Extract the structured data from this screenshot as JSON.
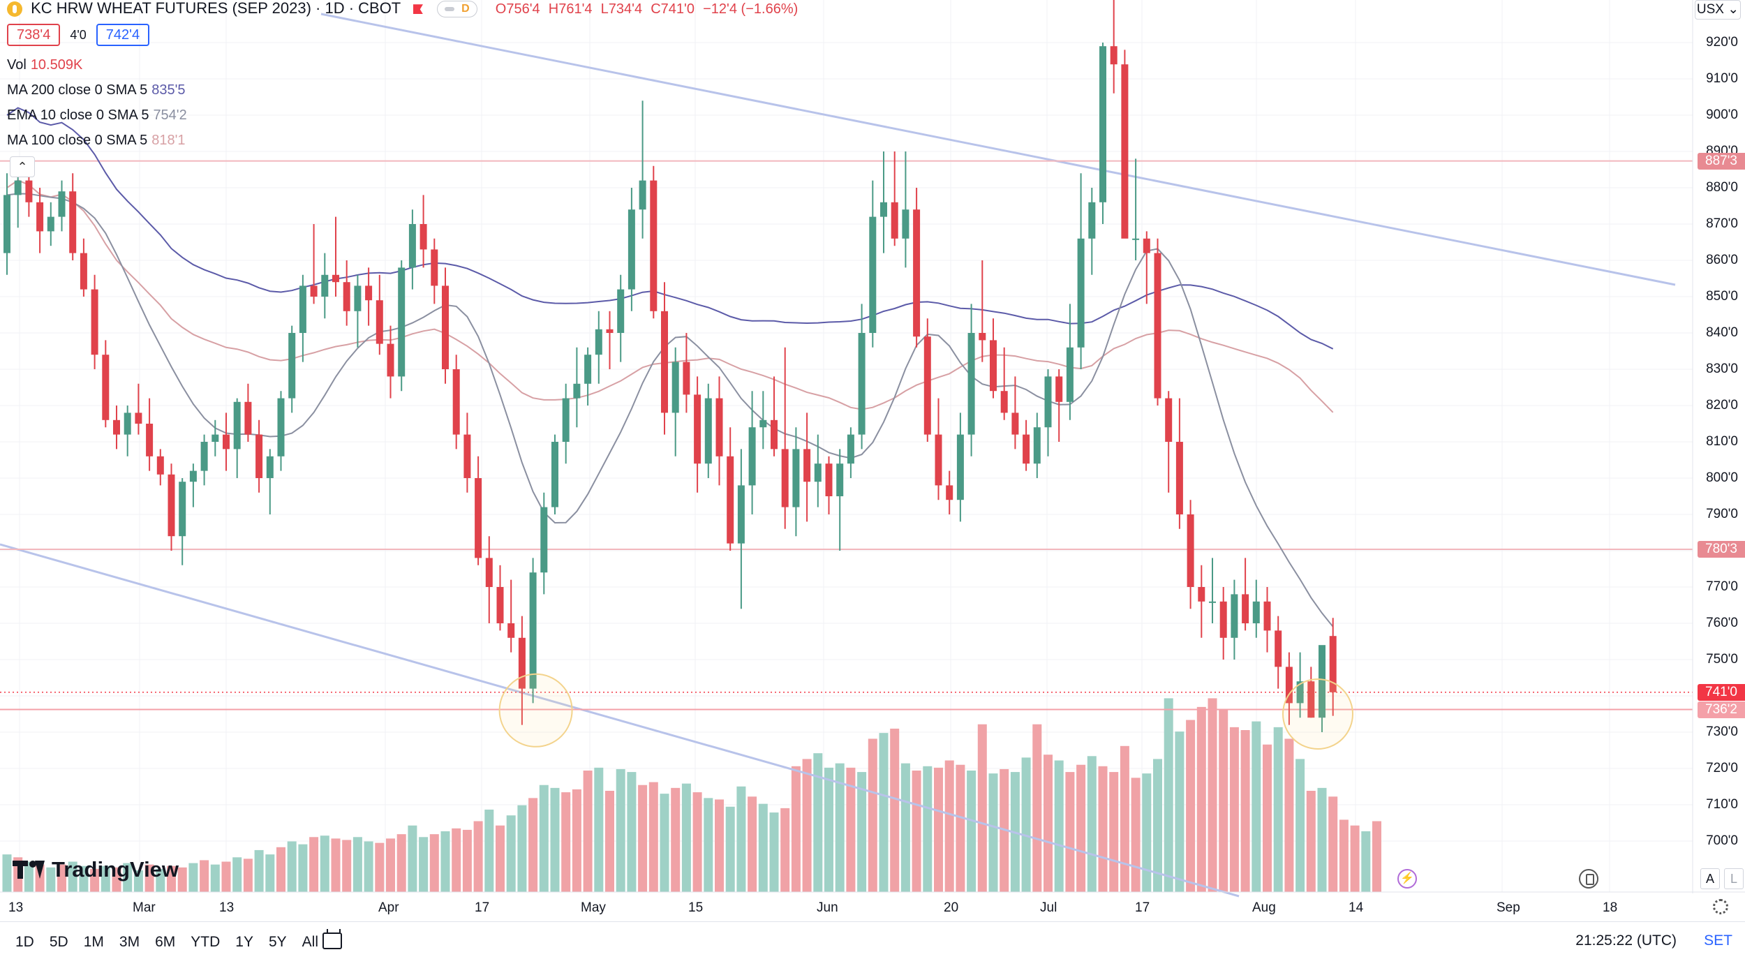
{
  "header": {
    "symbol_title": "KC HRW WHEAT FUTURES (SEP 2023) · 1D · CBOT",
    "status_badge": "D",
    "ohlc": {
      "open": "O756'4",
      "high": "H761'4",
      "low": "L734'4",
      "close": "C741'0",
      "change": "−12'4 (−1.66%)"
    },
    "bid": "738'4",
    "spread": "4'0",
    "ask": "742'4",
    "currency": "USX"
  },
  "indicators": [
    {
      "label": "Vol",
      "value": "10.509K",
      "color": "#e0424b"
    },
    {
      "label": "MA 200 close 0 SMA 5",
      "value": "835'5",
      "color": "#5b5aa8"
    },
    {
      "label": "EMA 10 close 0 SMA 5",
      "value": "754'2",
      "color": "#8a8fa0"
    },
    {
      "label": "MA 100 close 0 SMA 5",
      "value": "818'1",
      "color": "#d7a0a4"
    }
  ],
  "price_axis": {
    "ticks": [
      "920'0",
      "910'0",
      "900'0",
      "890'0",
      "880'0",
      "870'0",
      "860'0",
      "850'0",
      "840'0",
      "830'0",
      "820'0",
      "810'0",
      "800'0",
      "790'0",
      "780'0",
      "770'0",
      "760'0",
      "750'0",
      "740'0",
      "730'0",
      "720'0",
      "710'0",
      "700'0"
    ],
    "tags": [
      {
        "text": "887'3",
        "color": "#e88a92"
      },
      {
        "text": "780'3",
        "color": "#e88a92"
      },
      {
        "text": "741'0",
        "color": "#f23645"
      },
      {
        "text": "736'2",
        "color": "#f4a0a8"
      }
    ]
  },
  "time_axis": [
    "13",
    "Mar",
    "13",
    "Apr",
    "17",
    "May",
    "15",
    "Jun",
    "20",
    "Jul",
    "17",
    "Aug",
    "14",
    "Sep",
    "18"
  ],
  "bottom_bar": {
    "ranges": [
      "1D",
      "5D",
      "1M",
      "3M",
      "6M",
      "YTD",
      "1Y",
      "5Y",
      "All"
    ],
    "clock": "21:25:22 (UTC)",
    "settings": "SET",
    "auto": "A",
    "log": "L"
  },
  "brand": "TradingView",
  "colors": {
    "up": "#4a9a86",
    "down": "#e0424b",
    "up_vol": "#9fd1c6",
    "down_vol": "#f0a2a6",
    "trend": "#b8c3ea",
    "ma200": "#5b5aa8",
    "ema10": "#8a8fa0",
    "ma100": "#d7a0a4"
  },
  "chart_data": {
    "type": "candlestick",
    "ylim": [
      700,
      922
    ],
    "horizontal_levels": [
      887.375,
      780.375,
      741.0,
      736.25
    ],
    "candles": [
      [
        862,
        884,
        856,
        878
      ],
      [
        878,
        886,
        869,
        882
      ],
      [
        882,
        886,
        872,
        876
      ],
      [
        876,
        880,
        862,
        868
      ],
      [
        868,
        876,
        864,
        872
      ],
      [
        872,
        882,
        868,
        879
      ],
      [
        879,
        884,
        860,
        862
      ],
      [
        862,
        866,
        850,
        852
      ],
      [
        852,
        856,
        830,
        834
      ],
      [
        834,
        838,
        814,
        816
      ],
      [
        816,
        820,
        808,
        812
      ],
      [
        812,
        820,
        806,
        818
      ],
      [
        818,
        826,
        812,
        815
      ],
      [
        815,
        822,
        802,
        806
      ],
      [
        806,
        808,
        798,
        801
      ],
      [
        801,
        804,
        780,
        784
      ],
      [
        784,
        800,
        776,
        799
      ],
      [
        799,
        804,
        792,
        802
      ],
      [
        802,
        812,
        798,
        810
      ],
      [
        810,
        816,
        806,
        812
      ],
      [
        812,
        818,
        802,
        808
      ],
      [
        808,
        822,
        800,
        821
      ],
      [
        821,
        826,
        810,
        812
      ],
      [
        812,
        816,
        796,
        800
      ],
      [
        800,
        808,
        790,
        806
      ],
      [
        806,
        824,
        802,
        822
      ],
      [
        822,
        842,
        818,
        840
      ],
      [
        840,
        856,
        832,
        853
      ],
      [
        853,
        870,
        848,
        850
      ],
      [
        850,
        862,
        844,
        856
      ],
      [
        856,
        872,
        850,
        854
      ],
      [
        854,
        860,
        842,
        846
      ],
      [
        846,
        856,
        836,
        853
      ],
      [
        853,
        858,
        842,
        849
      ],
      [
        849,
        856,
        834,
        837
      ],
      [
        837,
        842,
        822,
        828
      ],
      [
        828,
        860,
        824,
        858
      ],
      [
        858,
        874,
        852,
        870
      ],
      [
        870,
        878,
        858,
        863
      ],
      [
        863,
        866,
        848,
        853
      ],
      [
        853,
        858,
        826,
        830
      ],
      [
        830,
        834,
        808,
        812
      ],
      [
        812,
        818,
        796,
        800
      ],
      [
        800,
        806,
        776,
        778
      ],
      [
        778,
        784,
        760,
        770
      ],
      [
        770,
        776,
        758,
        760
      ],
      [
        760,
        772,
        752,
        756
      ],
      [
        756,
        762,
        732,
        742
      ],
      [
        742,
        778,
        738,
        774
      ],
      [
        774,
        796,
        768,
        792
      ],
      [
        792,
        812,
        790,
        810
      ],
      [
        810,
        826,
        804,
        822
      ],
      [
        822,
        836,
        814,
        826
      ],
      [
        826,
        836,
        820,
        834
      ],
      [
        834,
        846,
        826,
        841
      ],
      [
        841,
        846,
        830,
        840
      ],
      [
        840,
        856,
        832,
        852
      ],
      [
        852,
        880,
        846,
        874
      ],
      [
        874,
        904,
        866,
        882
      ],
      [
        882,
        886,
        844,
        846
      ],
      [
        846,
        854,
        812,
        818
      ],
      [
        818,
        836,
        806,
        832
      ],
      [
        832,
        840,
        818,
        823
      ],
      [
        823,
        828,
        796,
        804
      ],
      [
        804,
        826,
        800,
        822
      ],
      [
        822,
        828,
        798,
        806
      ],
      [
        806,
        814,
        780,
        782
      ],
      [
        782,
        808,
        764,
        798
      ],
      [
        798,
        824,
        790,
        814
      ],
      [
        814,
        824,
        808,
        816
      ],
      [
        816,
        828,
        806,
        808
      ],
      [
        808,
        836,
        786,
        792
      ],
      [
        792,
        814,
        784,
        808
      ],
      [
        808,
        818,
        788,
        799
      ],
      [
        799,
        812,
        792,
        804
      ],
      [
        804,
        806,
        790,
        795
      ],
      [
        795,
        808,
        780,
        804
      ],
      [
        804,
        814,
        800,
        812
      ],
      [
        812,
        848,
        808,
        840
      ],
      [
        840,
        882,
        836,
        872
      ],
      [
        872,
        890,
        862,
        876
      ],
      [
        876,
        890,
        864,
        866
      ],
      [
        866,
        890,
        858,
        874
      ],
      [
        874,
        880,
        836,
        839
      ],
      [
        839,
        844,
        810,
        812
      ],
      [
        812,
        822,
        794,
        798
      ],
      [
        798,
        802,
        790,
        794
      ],
      [
        794,
        818,
        788,
        812
      ],
      [
        812,
        848,
        806,
        840
      ],
      [
        840,
        860,
        832,
        838
      ],
      [
        838,
        844,
        822,
        824
      ],
      [
        824,
        836,
        816,
        818
      ],
      [
        818,
        828,
        808,
        812
      ],
      [
        812,
        816,
        802,
        804
      ],
      [
        804,
        818,
        800,
        814
      ],
      [
        814,
        830,
        806,
        828
      ],
      [
        828,
        830,
        810,
        821
      ],
      [
        821,
        848,
        816,
        836
      ],
      [
        836,
        884,
        830,
        866
      ],
      [
        866,
        880,
        856,
        876
      ],
      [
        876,
        920,
        870,
        919
      ],
      [
        919,
        935,
        906,
        914
      ],
      [
        914,
        918,
        868,
        866
      ],
      [
        866,
        888,
        860,
        866
      ],
      [
        866,
        868,
        848,
        862
      ],
      [
        862,
        866,
        820,
        822
      ],
      [
        822,
        824,
        796,
        810
      ],
      [
        810,
        822,
        786,
        790
      ],
      [
        790,
        794,
        764,
        770
      ],
      [
        770,
        776,
        756,
        766
      ],
      [
        766,
        778,
        760,
        766
      ],
      [
        766,
        770,
        750,
        756
      ],
      [
        756,
        772,
        750,
        768
      ],
      [
        768,
        778,
        758,
        760
      ],
      [
        760,
        772,
        756,
        766
      ],
      [
        766,
        770,
        752,
        758
      ],
      [
        758,
        762,
        742,
        748
      ],
      [
        748,
        752,
        732,
        738
      ],
      [
        738,
        752,
        734,
        744
      ],
      [
        744,
        748,
        734,
        734
      ],
      [
        734,
        752,
        730,
        754
      ],
      [
        756.5,
        761.5,
        734.5,
        741
      ]
    ],
    "volume": [
      [
        2.6,
        1
      ],
      [
        2.4,
        0
      ],
      [
        2.1,
        1
      ],
      [
        1.9,
        0
      ],
      [
        1.7,
        1
      ],
      [
        1.9,
        0
      ],
      [
        2.1,
        1
      ],
      [
        1.8,
        1
      ],
      [
        1.6,
        0
      ],
      [
        1.8,
        1
      ],
      [
        1.7,
        0
      ],
      [
        2.0,
        1
      ],
      [
        1.5,
        1
      ],
      [
        1.9,
        0
      ],
      [
        1.6,
        1
      ],
      [
        1.8,
        0
      ],
      [
        1.7,
        0
      ],
      [
        2.0,
        1
      ],
      [
        2.2,
        0
      ],
      [
        1.9,
        1
      ],
      [
        2.1,
        0
      ],
      [
        2.4,
        1
      ],
      [
        2.3,
        0
      ],
      [
        2.9,
        1
      ],
      [
        2.6,
        1
      ],
      [
        3.1,
        0
      ],
      [
        3.5,
        1
      ],
      [
        3.3,
        1
      ],
      [
        3.8,
        0
      ],
      [
        3.9,
        1
      ],
      [
        3.7,
        0
      ],
      [
        3.6,
        0
      ],
      [
        3.8,
        1
      ],
      [
        3.5,
        1
      ],
      [
        3.4,
        0
      ],
      [
        3.7,
        0
      ],
      [
        4.0,
        0
      ],
      [
        4.6,
        1
      ],
      [
        3.8,
        1
      ],
      [
        4.0,
        0
      ],
      [
        4.2,
        1
      ],
      [
        4.4,
        0
      ],
      [
        4.3,
        0
      ],
      [
        4.9,
        0
      ],
      [
        5.7,
        1
      ],
      [
        4.6,
        0
      ],
      [
        5.3,
        1
      ],
      [
        6.0,
        1
      ],
      [
        6.5,
        0
      ],
      [
        7.4,
        1
      ],
      [
        7.2,
        1
      ],
      [
        6.9,
        0
      ],
      [
        7.1,
        0
      ],
      [
        8.4,
        0
      ],
      [
        8.6,
        1
      ],
      [
        7.0,
        0
      ],
      [
        8.5,
        1
      ],
      [
        8.3,
        1
      ],
      [
        7.4,
        0
      ],
      [
        7.6,
        0
      ],
      [
        6.8,
        1
      ],
      [
        7.2,
        0
      ],
      [
        7.5,
        1
      ],
      [
        6.9,
        0
      ],
      [
        6.5,
        1
      ],
      [
        6.4,
        0
      ],
      [
        5.9,
        1
      ],
      [
        7.3,
        1
      ],
      [
        6.6,
        0
      ],
      [
        6.1,
        1
      ],
      [
        5.5,
        1
      ],
      [
        5.8,
        0
      ],
      [
        8.7,
        0
      ],
      [
        9.2,
        0
      ],
      [
        9.6,
        1
      ],
      [
        8.6,
        1
      ],
      [
        8.9,
        1
      ],
      [
        8.6,
        0
      ],
      [
        8.3,
        1
      ],
      [
        10.6,
        0
      ],
      [
        11.0,
        1
      ],
      [
        11.3,
        0
      ],
      [
        8.9,
        1
      ],
      [
        8.4,
        0
      ],
      [
        8.7,
        1
      ],
      [
        8.6,
        0
      ],
      [
        9.1,
        0
      ],
      [
        8.8,
        0
      ],
      [
        8.4,
        1
      ],
      [
        11.6,
        0
      ],
      [
        8.2,
        1
      ],
      [
        8.5,
        0
      ],
      [
        8.3,
        1
      ],
      [
        9.3,
        1
      ],
      [
        11.6,
        0
      ],
      [
        9.5,
        0
      ],
      [
        9.1,
        1
      ],
      [
        8.3,
        0
      ],
      [
        8.8,
        0
      ],
      [
        9.4,
        1
      ],
      [
        8.7,
        0
      ],
      [
        8.3,
        0
      ],
      [
        10.1,
        0
      ],
      [
        7.9,
        0
      ],
      [
        8.2,
        1
      ],
      [
        9.2,
        1
      ],
      [
        13.4,
        1
      ],
      [
        11.1,
        1
      ],
      [
        11.9,
        0
      ],
      [
        12.8,
        0
      ],
      [
        13.4,
        0
      ],
      [
        12.6,
        0
      ],
      [
        11.4,
        0
      ],
      [
        11.2,
        0
      ],
      [
        11.8,
        1
      ],
      [
        10.2,
        0
      ],
      [
        11.4,
        1
      ],
      [
        10.6,
        0
      ],
      [
        9.2,
        1
      ],
      [
        7.0,
        0
      ],
      [
        7.2,
        1
      ],
      [
        6.6,
        0
      ],
      [
        5.0,
        0
      ],
      [
        4.6,
        0
      ],
      [
        4.2,
        1
      ],
      [
        4.9,
        0
      ]
    ],
    "vol_max": 14.0,
    "ma200_last": 835.625,
    "ema10_last": 754.25,
    "ma100_last": 818.125,
    "x_labels": [
      "13",
      "Mar",
      "13",
      "Apr",
      "17",
      "May",
      "15",
      "Jun",
      "20",
      "Jul",
      "17",
      "Aug",
      "14",
      "Sep",
      "18"
    ]
  }
}
